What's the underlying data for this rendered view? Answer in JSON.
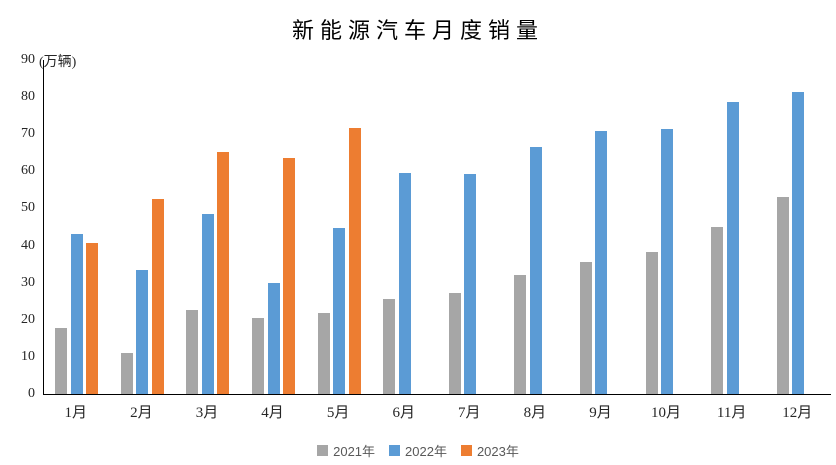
{
  "chart_data": {
    "type": "bar",
    "title": "新能源汽车月度销量",
    "ylabel": "(万辆)",
    "xlabel": "",
    "categories": [
      "1月",
      "2月",
      "3月",
      "4月",
      "5月",
      "6月",
      "7月",
      "8月",
      "9月",
      "10月",
      "11月",
      "12月"
    ],
    "series": [
      {
        "name": "2021年",
        "color": "#A6A6A6",
        "values": [
          17.9,
          11.0,
          22.6,
          20.6,
          21.7,
          25.6,
          27.1,
          32.1,
          35.7,
          38.3,
          45.0,
          53.1
        ]
      },
      {
        "name": "2022年",
        "color": "#5B9BD5",
        "values": [
          43.1,
          33.4,
          48.4,
          29.9,
          44.7,
          59.6,
          59.3,
          66.6,
          70.8,
          71.4,
          78.6,
          81.4
        ]
      },
      {
        "name": "2023年",
        "color": "#ED7D31",
        "values": [
          40.8,
          52.5,
          65.3,
          63.6,
          71.7,
          null,
          null,
          null,
          null,
          null,
          null,
          null
        ]
      }
    ],
    "ylim": [
      0,
      90
    ],
    "yticks": [
      0,
      10,
      20,
      30,
      40,
      50,
      60,
      70,
      80,
      90
    ],
    "grid": false,
    "legend_position": "bottom",
    "axis_color": "#000000",
    "tick_text_color": "#262626",
    "legend_text_color": "#595959"
  }
}
